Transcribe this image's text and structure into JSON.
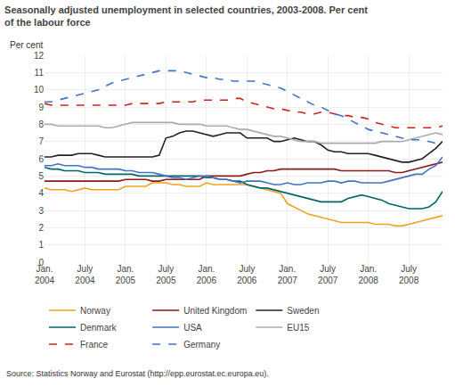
{
  "chart_data": {
    "type": "line",
    "title": "Seasonally adjusted unemployment in selected countries, 2003-2008. Per cent\nof the labour force",
    "ylabel": "Per cent",
    "annotations": [
      "Source: Statistics Norway and Eurostat (http://epp.eurostat.ec.europa.eu)."
    ],
    "categories": [
      "Jan.\n2004",
      null,
      null,
      null,
      null,
      null,
      "July\n2004",
      null,
      null,
      null,
      null,
      null,
      "Jan.\n2005",
      null,
      null,
      null,
      null,
      null,
      "July\n2005",
      null,
      null,
      null,
      null,
      null,
      "Jan.\n2006",
      null,
      null,
      null,
      null,
      null,
      "July\n2006",
      null,
      null,
      null,
      null,
      null,
      "Jan.\n2007",
      null,
      null,
      null,
      null,
      null,
      "July\n2007",
      null,
      null,
      null,
      null,
      null,
      "Jan.\n2008",
      null,
      null,
      null,
      null,
      null,
      "July\n2008",
      null,
      null,
      null,
      null,
      null
    ],
    "ylim": [
      0,
      12
    ],
    "yticks": [
      0,
      1,
      2,
      3,
      4,
      5,
      6,
      7,
      8,
      9,
      10,
      11,
      12
    ],
    "grid": true,
    "legend": "bottom",
    "series": [
      {
        "name": "Norway",
        "color": "#f4a022",
        "line_style": "solid",
        "values": [
          4.3,
          4.2,
          4.2,
          4.2,
          4.1,
          4.2,
          4.3,
          4.2,
          4.2,
          4.2,
          4.2,
          4.2,
          4.4,
          4.4,
          4.4,
          4.4,
          4.6,
          4.6,
          4.6,
          4.5,
          4.5,
          4.4,
          4.4,
          4.4,
          4.6,
          4.5,
          4.5,
          4.5,
          4.5,
          4.5,
          4.5,
          4.4,
          4.3,
          4.2,
          4.1,
          4.0,
          3.4,
          3.2,
          3.0,
          2.8,
          2.7,
          2.6,
          2.5,
          2.4,
          2.3,
          2.3,
          2.3,
          2.3,
          2.3,
          2.2,
          2.2,
          2.2,
          2.1,
          2.1,
          2.2,
          2.3,
          2.4,
          2.5,
          2.6,
          2.7
        ]
      },
      {
        "name": "United Kingdom",
        "color": "#8b1a1a",
        "line_style": "solid",
        "values": [
          4.7,
          4.7,
          4.7,
          4.7,
          4.7,
          4.7,
          4.7,
          4.7,
          4.7,
          4.7,
          4.7,
          4.7,
          4.8,
          4.8,
          4.8,
          4.8,
          4.7,
          4.7,
          4.8,
          4.8,
          4.8,
          4.8,
          4.8,
          4.8,
          5.0,
          5.0,
          5.0,
          5.0,
          5.0,
          5.0,
          5.1,
          5.2,
          5.2,
          5.3,
          5.3,
          5.4,
          5.4,
          5.4,
          5.4,
          5.4,
          5.4,
          5.4,
          5.4,
          5.4,
          5.3,
          5.3,
          5.3,
          5.3,
          5.3,
          5.3,
          5.3,
          5.3,
          5.2,
          5.2,
          5.3,
          5.4,
          5.5,
          5.6,
          5.7,
          5.8
        ]
      },
      {
        "name": "Sweden",
        "color": "#222222",
        "line_style": "solid",
        "values": [
          6.1,
          6.1,
          6.2,
          6.2,
          6.2,
          6.3,
          6.3,
          6.3,
          6.2,
          6.1,
          6.1,
          6.1,
          6.1,
          6.1,
          6.1,
          6.1,
          6.1,
          6.2,
          7.2,
          7.3,
          7.5,
          7.6,
          7.6,
          7.5,
          7.4,
          7.3,
          7.4,
          7.5,
          7.5,
          7.5,
          7.2,
          7.2,
          7.2,
          7.2,
          7.0,
          7.0,
          7.1,
          7.2,
          7.1,
          7.0,
          7.0,
          6.8,
          6.5,
          6.4,
          6.4,
          6.3,
          6.3,
          6.3,
          6.3,
          6.2,
          6.1,
          6.0,
          5.9,
          5.8,
          5.8,
          5.9,
          6.0,
          6.3,
          6.6,
          7.0
        ]
      },
      {
        "name": "Denmark",
        "color": "#006666",
        "line_style": "solid",
        "values": [
          5.5,
          5.4,
          5.4,
          5.3,
          5.3,
          5.3,
          5.2,
          5.2,
          5.2,
          5.1,
          5.1,
          5.1,
          5.1,
          5.1,
          5.0,
          5.0,
          5.0,
          5.0,
          5.0,
          5.0,
          5.0,
          5.0,
          5.0,
          5.0,
          4.9,
          4.9,
          4.8,
          4.8,
          4.7,
          4.7,
          4.5,
          4.4,
          4.3,
          4.3,
          4.2,
          4.1,
          4.0,
          3.9,
          3.8,
          3.7,
          3.6,
          3.5,
          3.5,
          3.5,
          3.5,
          3.7,
          3.8,
          3.9,
          3.8,
          3.7,
          3.6,
          3.4,
          3.3,
          3.2,
          3.1,
          3.1,
          3.1,
          3.2,
          3.5,
          4.1
        ]
      },
      {
        "name": "USA",
        "color": "#4472c4",
        "line_style": "solid",
        "values": [
          5.6,
          5.6,
          5.7,
          5.6,
          5.6,
          5.6,
          5.5,
          5.5,
          5.4,
          5.4,
          5.4,
          5.4,
          5.3,
          5.3,
          5.2,
          5.2,
          5.2,
          5.1,
          5.0,
          4.9,
          4.9,
          4.8,
          4.9,
          5.0,
          5.0,
          4.9,
          4.8,
          4.8,
          4.7,
          4.6,
          4.7,
          4.7,
          4.7,
          4.6,
          4.5,
          4.5,
          4.6,
          4.5,
          4.5,
          4.6,
          4.6,
          4.6,
          4.7,
          4.7,
          4.6,
          4.7,
          4.7,
          4.6,
          4.6,
          4.6,
          4.6,
          4.7,
          4.8,
          4.9,
          5.0,
          5.1,
          5.1,
          5.4,
          5.6,
          6.1
        ]
      },
      {
        "name": "EU15",
        "color": "#aaaaaa",
        "line_style": "solid",
        "values": [
          8.0,
          8.0,
          7.9,
          7.9,
          7.9,
          7.9,
          7.9,
          7.9,
          7.9,
          7.8,
          7.8,
          7.9,
          8.0,
          8.1,
          8.1,
          8.1,
          8.1,
          8.1,
          8.1,
          8.1,
          8.0,
          8.0,
          8.0,
          8.0,
          7.9,
          7.9,
          7.9,
          7.9,
          7.8,
          7.7,
          7.7,
          7.6,
          7.5,
          7.4,
          7.3,
          7.3,
          7.2,
          7.1,
          7.0,
          7.0,
          7.0,
          6.9,
          6.9,
          6.9,
          6.9,
          6.9,
          6.9,
          6.9,
          6.9,
          6.9,
          7.0,
          7.0,
          7.0,
          7.0,
          7.1,
          7.2,
          7.3,
          7.4,
          7.5,
          7.4
        ]
      },
      {
        "name": "France",
        "color": "#cc2222",
        "line_style": "dashed",
        "values": [
          9.2,
          9.1,
          9.1,
          9.1,
          9.1,
          9.1,
          9.1,
          9.1,
          9.1,
          9.1,
          9.1,
          9.1,
          9.1,
          9.2,
          9.2,
          9.2,
          9.2,
          9.2,
          9.3,
          9.3,
          9.3,
          9.3,
          9.3,
          9.4,
          9.4,
          9.4,
          9.4,
          9.4,
          9.5,
          9.5,
          9.3,
          9.2,
          9.1,
          9.0,
          8.9,
          8.9,
          8.8,
          8.7,
          8.7,
          8.6,
          8.6,
          8.7,
          8.7,
          8.6,
          8.5,
          8.5,
          8.4,
          8.4,
          8.3,
          8.1,
          8.0,
          7.9,
          7.8,
          7.8,
          7.8,
          7.8,
          7.8,
          7.8,
          7.8,
          7.9
        ]
      },
      {
        "name": "Germany",
        "color": "#4472c4",
        "line_style": "dashed",
        "values": [
          9.3,
          9.3,
          9.4,
          9.5,
          9.6,
          9.7,
          9.8,
          9.9,
          10.0,
          10.2,
          10.4,
          10.5,
          10.6,
          10.7,
          10.8,
          10.9,
          11.0,
          11.1,
          11.1,
          11.1,
          11.1,
          11.0,
          10.9,
          10.8,
          10.7,
          10.7,
          10.6,
          10.6,
          10.5,
          10.5,
          10.5,
          10.5,
          10.4,
          10.3,
          10.2,
          10.1,
          9.9,
          9.7,
          9.5,
          9.3,
          9.1,
          9.0,
          8.8,
          8.6,
          8.5,
          8.3,
          8.1,
          7.9,
          7.7,
          7.6,
          7.5,
          7.4,
          7.3,
          7.2,
          7.1,
          7.1,
          7.1,
          7.0,
          6.9,
          6.9
        ]
      }
    ]
  }
}
